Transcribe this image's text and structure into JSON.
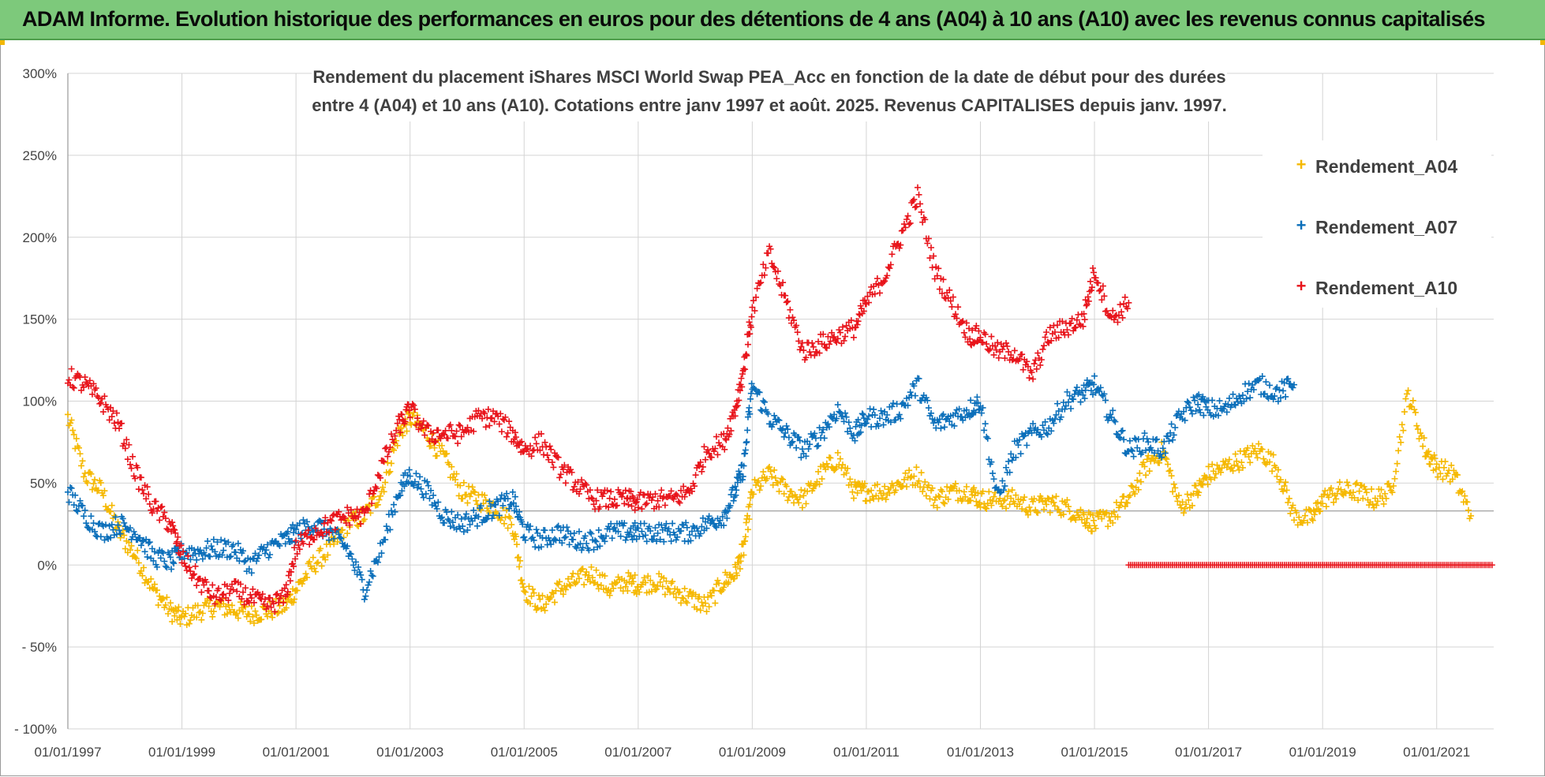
{
  "banner": {
    "title": "ADAM Informe. Evolution historique des performances en euros pour des détentions de 4 ans (A04) à 10 ans (A10) avec les revenus connus capitalisés"
  },
  "colors": {
    "banner_bg": "#7dc97b",
    "A04": "#f5b800",
    "A07": "#0b6fba",
    "A10": "#e8141b",
    "grid": "#d4d4d4"
  },
  "chart_data": {
    "type": "scatter",
    "title_lines": [
      "Rendement du placement iShares MSCI World Swap PEA_Acc en fonction de la date de début pour des durées",
      "entre 4 (A04) et 10 ans (A10).  Cotations entre janv 1997 et août. 2025. Revenus CAPITALISES depuis janv. 1997."
    ],
    "xlabel": "",
    "ylabel": "",
    "x_range": [
      "1997-01-01",
      "2021-12-31"
    ],
    "ylim": [
      -100,
      300
    ],
    "y_ticks": [
      300,
      250,
      200,
      150,
      100,
      50,
      0,
      -50,
      -100
    ],
    "y_tick_labels": [
      "300%",
      "250%",
      "200%",
      "150%",
      "100%",
      "50%",
      "0%",
      "- 50%",
      "- 100%"
    ],
    "x_tick_labels": [
      "01/01/1997",
      "01/01/1999",
      "01/01/2001",
      "01/01/2003",
      "01/01/2005",
      "01/01/2007",
      "01/01/2009",
      "01/01/2011",
      "01/01/2013",
      "01/01/2015",
      "01/01/2017",
      "01/01/2019",
      "01/01/2021"
    ],
    "x_tick_years": [
      1997,
      1999,
      2001,
      2003,
      2005,
      2007,
      2009,
      2011,
      2013,
      2015,
      2017,
      2019,
      2021
    ],
    "reference_line_y": 33,
    "grid": true,
    "legend_position": "top-right",
    "marker": "+",
    "series": [
      {
        "name": "Rendement_A04",
        "color": "#f5b800",
        "x": [
          1997.0,
          1997.3,
          1997.6,
          1997.9,
          1998.2,
          1998.5,
          1998.8,
          1999.0,
          1999.3,
          1999.6,
          1999.9,
          2000.2,
          2000.5,
          2000.8,
          2001.0,
          2001.3,
          2001.6,
          2001.9,
          2002.2,
          2002.5,
          2002.8,
          2003.0,
          2003.3,
          2003.6,
          2003.9,
          2004.2,
          2004.5,
          2004.8,
          2005.0,
          2005.3,
          2005.6,
          2005.9,
          2006.2,
          2006.5,
          2006.8,
          2007.0,
          2007.3,
          2007.6,
          2007.9,
          2008.2,
          2008.5,
          2008.7,
          2008.85,
          2009.0,
          2009.3,
          2009.6,
          2009.9,
          2010.2,
          2010.5,
          2010.8,
          2011.0,
          2011.3,
          2011.6,
          2011.9,
          2012.2,
          2012.5,
          2012.8,
          2013.0,
          2013.3,
          2013.6,
          2013.9,
          2014.2,
          2014.5,
          2014.8,
          2015.0,
          2015.3,
          2015.6,
          2015.9,
          2016.2,
          2016.5,
          2016.8,
          2017.0,
          2017.3,
          2017.6,
          2017.9,
          2018.2,
          2018.5,
          2018.8,
          2019.0,
          2019.3,
          2019.6,
          2019.9,
          2020.2,
          2020.5,
          2020.8,
          2021.0,
          2021.3,
          2021.6
        ],
        "y": [
          90,
          55,
          45,
          20,
          5,
          -15,
          -28,
          -33,
          -28,
          -25,
          -27,
          -30,
          -28,
          -25,
          -15,
          0,
          10,
          25,
          30,
          45,
          80,
          90,
          80,
          65,
          45,
          40,
          35,
          25,
          -15,
          -25,
          -15,
          -10,
          -5,
          -15,
          -10,
          -12,
          -10,
          -15,
          -20,
          -25,
          -10,
          -5,
          10,
          45,
          55,
          45,
          40,
          55,
          65,
          45,
          45,
          45,
          50,
          55,
          40,
          45,
          45,
          40,
          40,
          40,
          35,
          38,
          35,
          30,
          25,
          30,
          40,
          60,
          70,
          35,
          45,
          55,
          60,
          65,
          70,
          60,
          30,
          28,
          40,
          45,
          45,
          40,
          45,
          105,
          70,
          60,
          55,
          30
        ]
      },
      {
        "name": "Rendement_A07",
        "color": "#0b6fba",
        "x": [
          1997.0,
          1997.3,
          1997.6,
          1997.9,
          1998.2,
          1998.5,
          1998.8,
          1999.0,
          1999.3,
          1999.6,
          1999.9,
          2000.2,
          2000.5,
          2000.8,
          2001.0,
          2001.3,
          2001.6,
          2001.9,
          2002.2,
          2002.5,
          2002.8,
          2003.0,
          2003.3,
          2003.6,
          2003.9,
          2004.2,
          2004.5,
          2004.8,
          2005.0,
          2005.3,
          2005.6,
          2005.9,
          2006.2,
          2006.5,
          2006.8,
          2007.0,
          2007.3,
          2007.6,
          2007.9,
          2008.2,
          2008.5,
          2008.7,
          2008.85,
          2009.0,
          2009.3,
          2009.6,
          2009.9,
          2010.2,
          2010.5,
          2010.8,
          2011.0,
          2011.3,
          2011.6,
          2011.9,
          2012.2,
          2012.5,
          2012.8,
          2013.0,
          2013.3,
          2013.6,
          2013.9,
          2014.2,
          2014.5,
          2014.8,
          2015.0,
          2015.3,
          2015.6,
          2015.9,
          2016.2,
          2016.5,
          2016.8,
          2017.0,
          2017.3,
          2017.6,
          2017.9,
          2018.2,
          2018.5
        ],
        "y": [
          45,
          30,
          20,
          25,
          20,
          5,
          2,
          8,
          8,
          10,
          10,
          0,
          10,
          15,
          20,
          25,
          20,
          10,
          -15,
          10,
          45,
          55,
          45,
          30,
          25,
          30,
          35,
          40,
          20,
          15,
          20,
          15,
          15,
          20,
          20,
          20,
          20,
          20,
          20,
          25,
          30,
          45,
          60,
          110,
          90,
          80,
          70,
          80,
          95,
          80,
          90,
          90,
          95,
          110,
          85,
          90,
          95,
          100,
          40,
          70,
          80,
          85,
          100,
          105,
          110,
          90,
          70,
          75,
          70,
          90,
          100,
          95,
          95,
          105,
          110,
          105,
          110
        ]
      },
      {
        "name": "Rendement_A10",
        "color": "#e8141b",
        "x": [
          1997.0,
          1997.3,
          1997.6,
          1997.9,
          1998.2,
          1998.5,
          1998.8,
          1999.0,
          1999.3,
          1999.6,
          1999.9,
          2000.2,
          2000.5,
          2000.8,
          2001.0,
          2001.3,
          2001.6,
          2001.9,
          2002.2,
          2002.5,
          2002.8,
          2003.0,
          2003.3,
          2003.6,
          2003.9,
          2004.2,
          2004.5,
          2004.8,
          2005.0,
          2005.3,
          2005.6,
          2005.9,
          2006.2,
          2006.5,
          2006.8,
          2007.0,
          2007.3,
          2007.6,
          2007.9,
          2008.2,
          2008.5,
          2008.7,
          2008.85,
          2009.0,
          2009.3,
          2009.6,
          2009.9,
          2010.2,
          2010.5,
          2010.8,
          2011.0,
          2011.3,
          2011.6,
          2011.9,
          2012.2,
          2012.5,
          2012.8,
          2013.0,
          2013.3,
          2013.6,
          2013.9,
          2014.2,
          2014.5,
          2014.8,
          2015.0,
          2015.3,
          2015.6
        ],
        "y": [
          115,
          110,
          100,
          85,
          55,
          35,
          25,
          5,
          -10,
          -20,
          -15,
          -20,
          -25,
          -20,
          10,
          20,
          25,
          30,
          30,
          60,
          85,
          95,
          80,
          80,
          80,
          90,
          90,
          80,
          70,
          75,
          60,
          50,
          40,
          40,
          40,
          38,
          40,
          40,
          45,
          70,
          75,
          95,
          120,
          155,
          190,
          160,
          130,
          135,
          140,
          145,
          160,
          175,
          200,
          225,
          180,
          160,
          140,
          140,
          130,
          130,
          115,
          140,
          145,
          150,
          180,
          150,
          160
        ]
      }
    ],
    "zero_band": {
      "series": "Rendement_A10",
      "x_start": 2015.6,
      "x_end": 2021.99,
      "y": 0
    }
  }
}
